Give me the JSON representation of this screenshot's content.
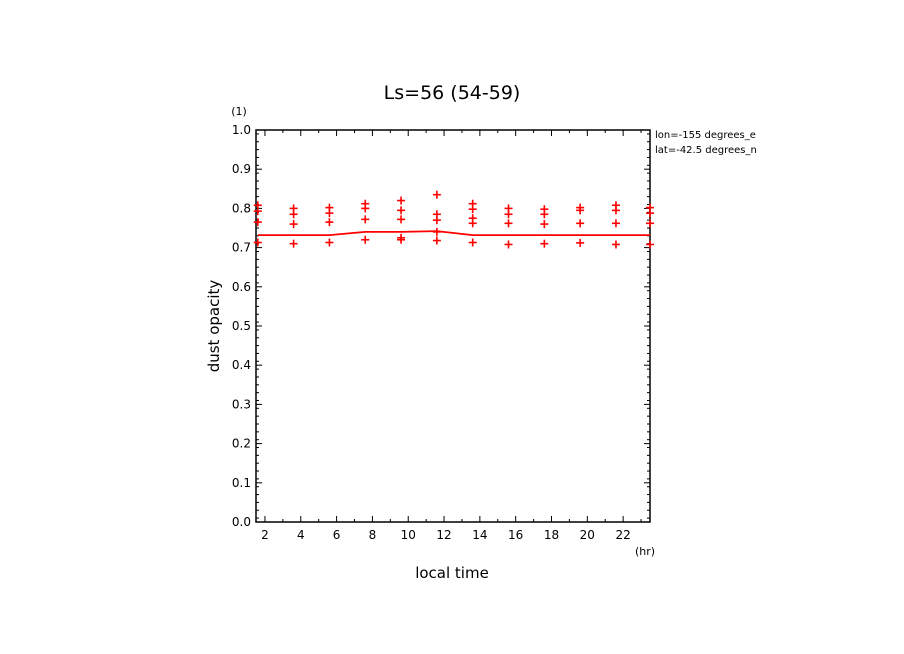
{
  "chart_data": {
    "type": "scatter",
    "title": "Ls=56 (54-59)",
    "xlabel": "local time",
    "ylabel": "dust opacity",
    "x_unit": "(hr)",
    "y_unit": "(1)",
    "xlim": [
      1.5,
      23.5
    ],
    "ylim": [
      0.0,
      1.0
    ],
    "x_ticks": [
      2,
      4,
      6,
      8,
      10,
      12,
      14,
      16,
      18,
      20,
      22
    ],
    "y_ticks": [
      0.0,
      0.1,
      0.2,
      0.3,
      0.4,
      0.5,
      0.6,
      0.7,
      0.8,
      0.9,
      1.0
    ],
    "grid": false,
    "annotations": [
      "lon=-155 degrees_e",
      "lat=-42.5 degrees_n"
    ],
    "colors": {
      "series": "#ff0000",
      "axes": "#000000"
    },
    "series": [
      {
        "kind": "points",
        "marker": "plus",
        "points": [
          [
            1.6,
            0.808
          ],
          [
            1.6,
            0.793
          ],
          [
            1.6,
            0.765
          ],
          [
            1.6,
            0.713
          ],
          [
            3.6,
            0.8
          ],
          [
            3.6,
            0.785
          ],
          [
            3.6,
            0.76
          ],
          [
            3.6,
            0.71
          ],
          [
            5.6,
            0.802
          ],
          [
            5.6,
            0.788
          ],
          [
            5.6,
            0.765
          ],
          [
            5.6,
            0.713
          ],
          [
            7.6,
            0.812
          ],
          [
            7.6,
            0.8
          ],
          [
            7.6,
            0.772
          ],
          [
            7.6,
            0.72
          ],
          [
            9.6,
            0.82
          ],
          [
            9.6,
            0.795
          ],
          [
            9.6,
            0.772
          ],
          [
            9.6,
            0.725
          ],
          [
            9.6,
            0.72
          ],
          [
            11.6,
            0.835
          ],
          [
            11.6,
            0.785
          ],
          [
            11.6,
            0.77
          ],
          [
            11.6,
            0.74
          ],
          [
            11.6,
            0.718
          ],
          [
            13.6,
            0.812
          ],
          [
            13.6,
            0.798
          ],
          [
            13.6,
            0.775
          ],
          [
            13.6,
            0.762
          ],
          [
            13.6,
            0.713
          ],
          [
            15.6,
            0.8
          ],
          [
            15.6,
            0.785
          ],
          [
            15.6,
            0.762
          ],
          [
            15.6,
            0.708
          ],
          [
            17.6,
            0.798
          ],
          [
            17.6,
            0.785
          ],
          [
            17.6,
            0.76
          ],
          [
            17.6,
            0.71
          ],
          [
            19.6,
            0.802
          ],
          [
            19.6,
            0.795
          ],
          [
            19.6,
            0.762
          ],
          [
            19.6,
            0.712
          ],
          [
            21.6,
            0.808
          ],
          [
            21.6,
            0.795
          ],
          [
            21.6,
            0.762
          ],
          [
            21.6,
            0.708
          ],
          [
            23.5,
            0.802
          ],
          [
            23.5,
            0.788
          ],
          [
            23.5,
            0.762
          ],
          [
            23.5,
            0.708
          ]
        ]
      },
      {
        "kind": "line",
        "x": [
          1.6,
          3.6,
          5.6,
          7.6,
          9.6,
          11.6,
          13.6,
          15.6,
          17.6,
          19.6,
          21.6,
          23.5
        ],
        "y": [
          0.732,
          0.732,
          0.732,
          0.74,
          0.74,
          0.742,
          0.732,
          0.732,
          0.732,
          0.732,
          0.732,
          0.732
        ]
      }
    ]
  }
}
